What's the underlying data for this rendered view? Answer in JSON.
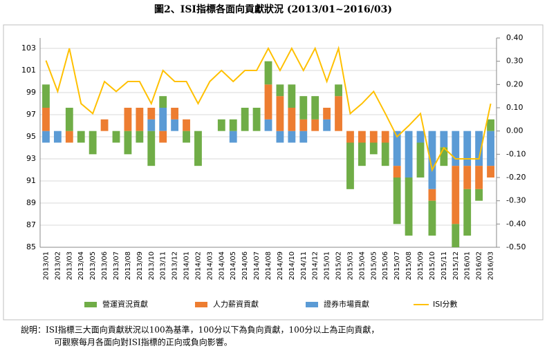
{
  "chart_data": {
    "type": "bar_line",
    "title": "圖2、ISI指標各面向貢獻狀況 (2013/01~2016/03)",
    "note": [
      "說明：ISI指標三大面向貢獻狀況以100為基準，100分以下為負向貢獻，100分以上為正向貢獻，",
      "可觀察每月各面向對ISI指標的正向或負向影響。"
    ],
    "categories": [
      "2013/01",
      "2013/02",
      "2013/03",
      "2013/04",
      "2013/05",
      "2013/06",
      "2013/07",
      "2013/08",
      "2013/09",
      "2013/10",
      "2013/11",
      "2013/12",
      "2014/01",
      "2014/02",
      "2014/03",
      "2014/04",
      "2014/05",
      "2014/06",
      "2014/07",
      "2014/08",
      "2014/09",
      "2014/10",
      "2014/11",
      "2014/12",
      "2015/01",
      "2015/02",
      "2015/03",
      "2015/04",
      "2015/05",
      "2015/06",
      "2015/07",
      "2015/08",
      "2015/09",
      "2015/10",
      "2015/11",
      "2015/12",
      "2016/01",
      "2016/02",
      "2016/03"
    ],
    "series": [
      {
        "name": "營運資況貢獻",
        "color": "#70ad47",
        "axis": "y2",
        "values": [
          0.1,
          0,
          0.1,
          -0.05,
          -0.1,
          0,
          -0.05,
          -0.1,
          -0.05,
          -0.15,
          0.05,
          0,
          -0.05,
          -0.15,
          0,
          0.05,
          0.05,
          0.1,
          0.1,
          0.1,
          0.05,
          0.1,
          0.1,
          0.1,
          0,
          0.05,
          -0.2,
          -0.1,
          -0.05,
          -0.1,
          -0.2,
          -0.25,
          -0.15,
          -0.15,
          -0.08,
          -0.1,
          -0.2,
          -0.05,
          0.05
        ]
      },
      {
        "name": "人力薪資貢獻",
        "color": "#ed7d31",
        "axis": "y2",
        "values": [
          0.1,
          0,
          -0.05,
          0,
          0,
          0.05,
          0,
          0.1,
          0.1,
          0.05,
          -0.05,
          0.05,
          0.05,
          0,
          0,
          0,
          0,
          0,
          0,
          0.15,
          0.15,
          0.1,
          0.05,
          0.05,
          0.05,
          0.15,
          -0.05,
          -0.05,
          -0.05,
          -0.05,
          -0.05,
          0,
          0,
          -0.05,
          0,
          -0.25,
          -0.1,
          -0.1,
          -0.05
        ]
      },
      {
        "name": "證券市場貢獻",
        "color": "#5b9bd5",
        "axis": "y2",
        "values": [
          -0.05,
          -0.05,
          0,
          0,
          0,
          0,
          0,
          0,
          0,
          0.05,
          0.1,
          0.05,
          0,
          0,
          0,
          0,
          -0.05,
          0,
          0,
          0.05,
          -0.05,
          -0.05,
          -0.05,
          0,
          0.05,
          0,
          0,
          0,
          0,
          0,
          -0.15,
          -0.2,
          -0.05,
          -0.25,
          -0.07,
          -0.15,
          -0.15,
          -0.15,
          -0.15
        ]
      },
      {
        "name": "ISI分數",
        "color": "#ffc000",
        "type": "line",
        "values": [
          101.9,
          99.1,
          103,
          98,
          97.1,
          100,
          99.1,
          100,
          100,
          98,
          101,
          100,
          100,
          98,
          100,
          101,
          100,
          101,
          101,
          103,
          101,
          103,
          101,
          103,
          100,
          103,
          97.1,
          98,
          99.1,
          97.1,
          95,
          96,
          97.1,
          92,
          94,
          93,
          93,
          93,
          98
        ]
      }
    ],
    "ylim": [
      85,
      103.94
    ],
    "yticks": [
      85,
      87,
      89,
      91,
      93,
      95,
      97,
      99,
      101,
      103
    ],
    "y2lim": [
      -0.5,
      0.4
    ],
    "y2ticks": [
      {
        "value": 0.4,
        "label": "0.40"
      },
      {
        "value": 0.3,
        "label": "0.30"
      },
      {
        "value": 0.2,
        "label": "0.20"
      },
      {
        "value": 0.1,
        "label": "0.10"
      },
      {
        "value": 0,
        "label": "0.00"
      },
      {
        "value": -0.1,
        "label": "-0.10"
      },
      {
        "value": -0.2,
        "label": "-0.20"
      },
      {
        "value": -0.3,
        "label": "-0.30"
      },
      {
        "value": -0.4,
        "label": "-0.40"
      },
      {
        "value": -0.5,
        "label": "-0.50"
      }
    ],
    "grid": true
  }
}
